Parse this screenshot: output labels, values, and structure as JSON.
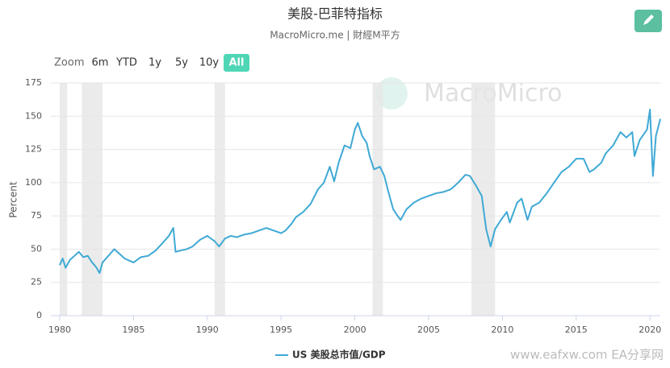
{
  "chart_data": {
    "type": "line",
    "title": "美股-巴菲特指标",
    "subtitle": "MacroMicro.me | 財經M平方",
    "zoom_label": "Zoom",
    "range_buttons": [
      "6m",
      "YTD",
      "1y",
      "5y",
      "10y",
      "All"
    ],
    "active_button": 5,
    "watermark": "MacroMicro",
    "footer_watermark": "www.eafxw.com  EA分享网",
    "y_label": "Percent",
    "xlim": [
      1979.4,
      2020.7
    ],
    "xticks": [
      1980,
      1985,
      1990,
      1995,
      2000,
      2005,
      2010,
      2015,
      2020
    ],
    "ylim": [
      0,
      175
    ],
    "yticks": [
      0,
      25,
      50,
      75,
      100,
      125,
      150,
      175
    ],
    "grid": true,
    "legend": "bottom",
    "recession_bands": [
      [
        1980.0,
        1980.5
      ],
      [
        1981.5,
        1982.9
      ],
      [
        1990.5,
        1991.2
      ],
      [
        2001.2,
        2001.9
      ],
      [
        2007.9,
        2009.5
      ]
    ],
    "x": [
      1980.0,
      1980.2,
      1980.4,
      1980.7,
      1981.0,
      1981.3,
      1981.6,
      1981.9,
      1982.2,
      1982.5,
      1982.7,
      1982.9,
      1983.3,
      1983.7,
      1984.0,
      1984.4,
      1984.8,
      1985.0,
      1985.5,
      1986.0,
      1986.5,
      1987.0,
      1987.4,
      1987.7,
      1987.85,
      1988.2,
      1988.6,
      1989.0,
      1989.5,
      1990.0,
      1990.5,
      1990.8,
      1991.2,
      1991.6,
      1992.0,
      1992.5,
      1993.0,
      1993.5,
      1994.0,
      1994.5,
      1995.0,
      1995.3,
      1995.7,
      1996.0,
      1996.5,
      1997.0,
      1997.5,
      1997.9,
      1998.3,
      1998.6,
      1998.9,
      1999.3,
      1999.7,
      2000.0,
      2000.2,
      2000.5,
      2000.8,
      2001.0,
      2001.3,
      2001.7,
      2002.0,
      2002.3,
      2002.6,
      2002.9,
      2003.1,
      2003.5,
      2004.0,
      2004.5,
      2005.0,
      2005.5,
      2006.0,
      2006.5,
      2007.0,
      2007.5,
      2007.8,
      2008.2,
      2008.6,
      2008.9,
      2009.2,
      2009.5,
      2009.9,
      2010.3,
      2010.5,
      2011.0,
      2011.3,
      2011.7,
      2012.0,
      2012.5,
      2013.0,
      2013.5,
      2014.0,
      2014.5,
      2015.0,
      2015.5,
      2015.9,
      2016.2,
      2016.7,
      2017.0,
      2017.5,
      2018.0,
      2018.4,
      2018.8,
      2018.95,
      2019.3,
      2019.8,
      2020.0,
      2020.2,
      2020.4,
      2020.7
    ],
    "series": [
      {
        "name": "US 美股总市值/GDP",
        "color": "#3fa9d5",
        "values": [
          38,
          43,
          36,
          42,
          45,
          48,
          44,
          45,
          40,
          36,
          32,
          40,
          45,
          50,
          47,
          43,
          41,
          40,
          44,
          45,
          49,
          55,
          60,
          66,
          48,
          49,
          50,
          52,
          57,
          60,
          56,
          52,
          58,
          60,
          59,
          61,
          62,
          64,
          66,
          64,
          62,
          64,
          69,
          74,
          78,
          84,
          95,
          100,
          112,
          101,
          115,
          128,
          126,
          140,
          145,
          135,
          130,
          120,
          110,
          112,
          105,
          92,
          80,
          75,
          72,
          80,
          85,
          88,
          90,
          92,
          93,
          95,
          100,
          106,
          105,
          98,
          90,
          65,
          52,
          65,
          72,
          78,
          70,
          85,
          88,
          72,
          82,
          85,
          92,
          100,
          108,
          112,
          118,
          118,
          108,
          110,
          115,
          122,
          128,
          138,
          134,
          138,
          120,
          132,
          140,
          155,
          105,
          135,
          148
        ]
      }
    ]
  }
}
